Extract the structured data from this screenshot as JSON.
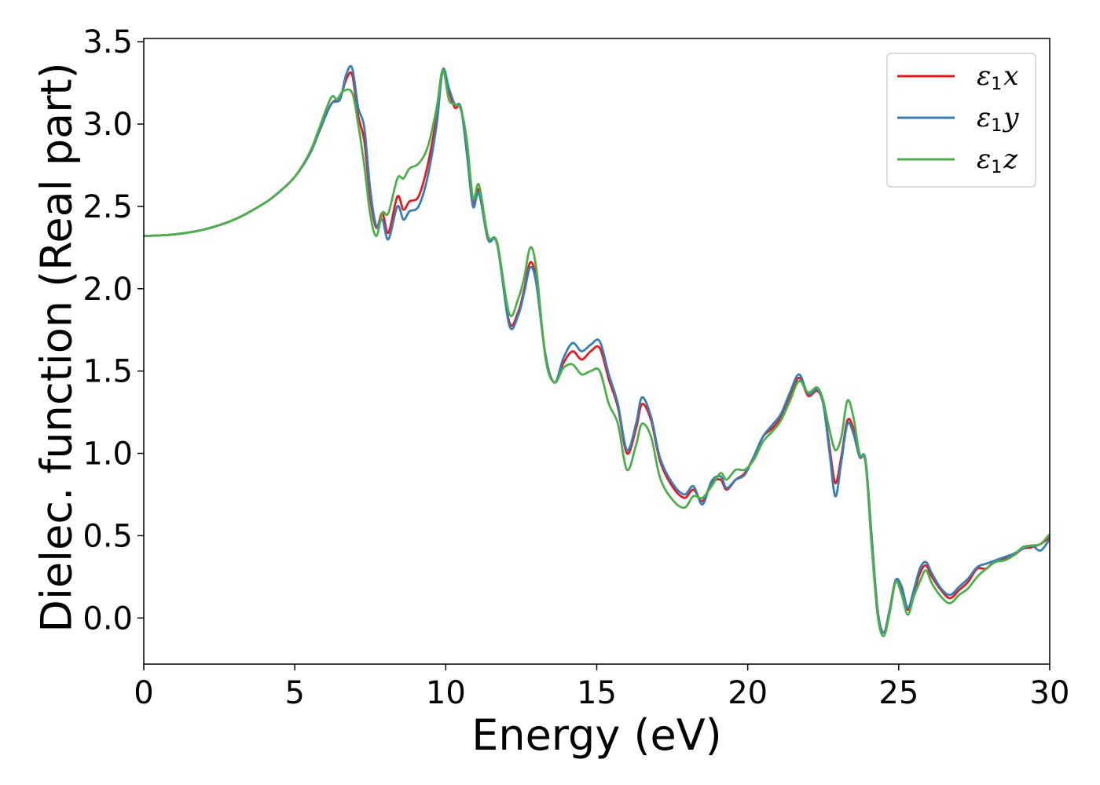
{
  "chart_data": {
    "type": "line",
    "title": "",
    "xlabel": "Energy (eV)",
    "ylabel": "Dielec. function (Real part)",
    "xlim": [
      0,
      30
    ],
    "ylim": [
      -0.28,
      3.52
    ],
    "xticks": [
      0,
      5,
      10,
      15,
      20,
      25,
      30
    ],
    "yticks": [
      0.0,
      0.5,
      1.0,
      1.5,
      2.0,
      2.5,
      3.0,
      3.5
    ],
    "xtick_labels": [
      "0",
      "5",
      "10",
      "15",
      "20",
      "25",
      "30"
    ],
    "ytick_labels": [
      "0.0",
      "0.5",
      "1.0",
      "1.5",
      "2.0",
      "2.5",
      "3.0",
      "3.5"
    ],
    "grid": false,
    "legend_position": "top-right",
    "series": [
      {
        "name": "ε1x",
        "legend_symbol": "ε",
        "legend_sub": "1",
        "legend_axis": "x",
        "color": "#e41a1c",
        "points": [
          [
            0,
            2.32
          ],
          [
            1,
            2.33
          ],
          [
            2,
            2.36
          ],
          [
            3,
            2.42
          ],
          [
            4,
            2.52
          ],
          [
            4.5,
            2.59
          ],
          [
            5,
            2.68
          ],
          [
            5.5,
            2.82
          ],
          [
            5.8,
            2.95
          ],
          [
            6.2,
            3.12
          ],
          [
            6.5,
            3.16
          ],
          [
            6.7,
            3.27
          ],
          [
            6.9,
            3.3
          ],
          [
            7.1,
            3.05
          ],
          [
            7.3,
            2.9
          ],
          [
            7.5,
            2.55
          ],
          [
            7.7,
            2.37
          ],
          [
            7.9,
            2.46
          ],
          [
            8.1,
            2.34
          ],
          [
            8.4,
            2.56
          ],
          [
            8.6,
            2.48
          ],
          [
            8.8,
            2.53
          ],
          [
            9.1,
            2.56
          ],
          [
            9.4,
            2.75
          ],
          [
            9.7,
            3.05
          ],
          [
            9.9,
            3.32
          ],
          [
            10.1,
            3.2
          ],
          [
            10.3,
            3.1
          ],
          [
            10.5,
            3.1
          ],
          [
            10.7,
            2.85
          ],
          [
            10.9,
            2.52
          ],
          [
            11.1,
            2.6
          ],
          [
            11.4,
            2.3
          ],
          [
            11.7,
            2.28
          ],
          [
            12.1,
            1.8
          ],
          [
            12.4,
            1.86
          ],
          [
            12.6,
            2.0
          ],
          [
            12.8,
            2.16
          ],
          [
            13.0,
            2.05
          ],
          [
            13.3,
            1.6
          ],
          [
            13.6,
            1.43
          ],
          [
            13.9,
            1.55
          ],
          [
            14.2,
            1.62
          ],
          [
            14.5,
            1.57
          ],
          [
            14.8,
            1.62
          ],
          [
            15.1,
            1.64
          ],
          [
            15.4,
            1.45
          ],
          [
            15.7,
            1.28
          ],
          [
            16.0,
            1.0
          ],
          [
            16.3,
            1.15
          ],
          [
            16.5,
            1.3
          ],
          [
            16.8,
            1.2
          ],
          [
            17.1,
            0.95
          ],
          [
            17.5,
            0.8
          ],
          [
            17.9,
            0.73
          ],
          [
            18.2,
            0.78
          ],
          [
            18.5,
            0.71
          ],
          [
            18.8,
            0.82
          ],
          [
            19.1,
            0.84
          ],
          [
            19.3,
            0.78
          ],
          [
            19.6,
            0.84
          ],
          [
            19.9,
            0.88
          ],
          [
            20.2,
            0.98
          ],
          [
            20.5,
            1.1
          ],
          [
            20.8,
            1.15
          ],
          [
            21.1,
            1.22
          ],
          [
            21.4,
            1.35
          ],
          [
            21.7,
            1.46
          ],
          [
            22.0,
            1.35
          ],
          [
            22.3,
            1.38
          ],
          [
            22.5,
            1.3
          ],
          [
            22.7,
            1.05
          ],
          [
            22.9,
            0.82
          ],
          [
            23.1,
            0.98
          ],
          [
            23.3,
            1.2
          ],
          [
            23.5,
            1.15
          ],
          [
            23.7,
            0.98
          ],
          [
            23.9,
            0.95
          ],
          [
            24.1,
            0.5
          ],
          [
            24.3,
            0.05
          ],
          [
            24.5,
            -0.09
          ],
          [
            24.7,
            0.05
          ],
          [
            24.9,
            0.23
          ],
          [
            25.1,
            0.18
          ],
          [
            25.3,
            0.05
          ],
          [
            25.5,
            0.15
          ],
          [
            25.7,
            0.27
          ],
          [
            25.9,
            0.32
          ],
          [
            26.1,
            0.25
          ],
          [
            26.4,
            0.17
          ],
          [
            26.7,
            0.12
          ],
          [
            27.0,
            0.17
          ],
          [
            27.3,
            0.22
          ],
          [
            27.6,
            0.3
          ],
          [
            27.9,
            0.3
          ],
          [
            28.2,
            0.35
          ],
          [
            28.5,
            0.36
          ],
          [
            28.8,
            0.38
          ],
          [
            29.1,
            0.42
          ],
          [
            29.4,
            0.43
          ],
          [
            29.7,
            0.45
          ],
          [
            30.0,
            0.49
          ]
        ]
      },
      {
        "name": "ε1y",
        "legend_symbol": "ε",
        "legend_sub": "1",
        "legend_axis": "y",
        "color": "#377eb8",
        "points": [
          [
            0,
            2.32
          ],
          [
            1,
            2.33
          ],
          [
            2,
            2.36
          ],
          [
            3,
            2.42
          ],
          [
            4,
            2.52
          ],
          [
            4.5,
            2.59
          ],
          [
            5,
            2.68
          ],
          [
            5.5,
            2.82
          ],
          [
            5.8,
            2.95
          ],
          [
            6.2,
            3.12
          ],
          [
            6.5,
            3.15
          ],
          [
            6.7,
            3.3
          ],
          [
            6.9,
            3.34
          ],
          [
            7.1,
            3.1
          ],
          [
            7.3,
            2.98
          ],
          [
            7.5,
            2.6
          ],
          [
            7.7,
            2.38
          ],
          [
            7.9,
            2.42
          ],
          [
            8.1,
            2.3
          ],
          [
            8.4,
            2.5
          ],
          [
            8.6,
            2.42
          ],
          [
            8.8,
            2.47
          ],
          [
            9.1,
            2.5
          ],
          [
            9.4,
            2.68
          ],
          [
            9.7,
            3.0
          ],
          [
            9.9,
            3.33
          ],
          [
            10.1,
            3.22
          ],
          [
            10.3,
            3.12
          ],
          [
            10.5,
            3.1
          ],
          [
            10.7,
            2.82
          ],
          [
            10.9,
            2.5
          ],
          [
            11.1,
            2.58
          ],
          [
            11.4,
            2.3
          ],
          [
            11.7,
            2.27
          ],
          [
            12.1,
            1.78
          ],
          [
            12.4,
            1.84
          ],
          [
            12.6,
            1.98
          ],
          [
            12.8,
            2.13
          ],
          [
            13.0,
            2.03
          ],
          [
            13.3,
            1.6
          ],
          [
            13.6,
            1.43
          ],
          [
            13.9,
            1.58
          ],
          [
            14.2,
            1.67
          ],
          [
            14.5,
            1.62
          ],
          [
            14.8,
            1.66
          ],
          [
            15.1,
            1.68
          ],
          [
            15.4,
            1.48
          ],
          [
            15.7,
            1.3
          ],
          [
            16.0,
            1.02
          ],
          [
            16.3,
            1.18
          ],
          [
            16.5,
            1.34
          ],
          [
            16.8,
            1.22
          ],
          [
            17.1,
            0.97
          ],
          [
            17.5,
            0.82
          ],
          [
            17.9,
            0.75
          ],
          [
            18.2,
            0.8
          ],
          [
            18.5,
            0.69
          ],
          [
            18.8,
            0.83
          ],
          [
            19.1,
            0.86
          ],
          [
            19.3,
            0.79
          ],
          [
            19.6,
            0.84
          ],
          [
            19.9,
            0.87
          ],
          [
            20.2,
            0.98
          ],
          [
            20.5,
            1.1
          ],
          [
            20.8,
            1.17
          ],
          [
            21.1,
            1.24
          ],
          [
            21.4,
            1.37
          ],
          [
            21.7,
            1.48
          ],
          [
            22.0,
            1.36
          ],
          [
            22.3,
            1.39
          ],
          [
            22.5,
            1.3
          ],
          [
            22.7,
            1.02
          ],
          [
            22.9,
            0.74
          ],
          [
            23.1,
            0.95
          ],
          [
            23.3,
            1.18
          ],
          [
            23.5,
            1.12
          ],
          [
            23.7,
            0.98
          ],
          [
            23.9,
            0.96
          ],
          [
            24.1,
            0.5
          ],
          [
            24.3,
            0.05
          ],
          [
            24.5,
            -0.09
          ],
          [
            24.7,
            0.05
          ],
          [
            24.9,
            0.23
          ],
          [
            25.1,
            0.19
          ],
          [
            25.3,
            0.06
          ],
          [
            25.5,
            0.17
          ],
          [
            25.7,
            0.3
          ],
          [
            25.9,
            0.34
          ],
          [
            26.1,
            0.27
          ],
          [
            26.4,
            0.18
          ],
          [
            26.7,
            0.14
          ],
          [
            27.0,
            0.19
          ],
          [
            27.3,
            0.24
          ],
          [
            27.6,
            0.31
          ],
          [
            27.9,
            0.33
          ],
          [
            28.2,
            0.35
          ],
          [
            28.5,
            0.37
          ],
          [
            28.8,
            0.39
          ],
          [
            29.1,
            0.42
          ],
          [
            29.4,
            0.44
          ],
          [
            29.7,
            0.41
          ],
          [
            30.0,
            0.48
          ]
        ]
      },
      {
        "name": "ε1z",
        "legend_symbol": "ε",
        "legend_sub": "1",
        "legend_axis": "z",
        "color": "#4daf4a",
        "points": [
          [
            0,
            2.32
          ],
          [
            1,
            2.33
          ],
          [
            2,
            2.36
          ],
          [
            3,
            2.42
          ],
          [
            4,
            2.52
          ],
          [
            4.5,
            2.59
          ],
          [
            5,
            2.68
          ],
          [
            5.5,
            2.83
          ],
          [
            5.8,
            2.97
          ],
          [
            6.2,
            3.16
          ],
          [
            6.4,
            3.15
          ],
          [
            6.6,
            3.2
          ],
          [
            6.9,
            3.19
          ],
          [
            7.1,
            3.0
          ],
          [
            7.3,
            2.75
          ],
          [
            7.5,
            2.45
          ],
          [
            7.7,
            2.32
          ],
          [
            7.9,
            2.46
          ],
          [
            8.1,
            2.46
          ],
          [
            8.4,
            2.67
          ],
          [
            8.6,
            2.67
          ],
          [
            8.8,
            2.73
          ],
          [
            9.1,
            2.76
          ],
          [
            9.4,
            2.86
          ],
          [
            9.7,
            3.1
          ],
          [
            9.9,
            3.33
          ],
          [
            10.1,
            3.15
          ],
          [
            10.3,
            3.12
          ],
          [
            10.5,
            3.09
          ],
          [
            10.7,
            2.9
          ],
          [
            10.9,
            2.55
          ],
          [
            11.1,
            2.63
          ],
          [
            11.4,
            2.32
          ],
          [
            11.7,
            2.28
          ],
          [
            12.1,
            1.85
          ],
          [
            12.4,
            1.94
          ],
          [
            12.6,
            2.07
          ],
          [
            12.8,
            2.25
          ],
          [
            13.0,
            2.12
          ],
          [
            13.3,
            1.58
          ],
          [
            13.6,
            1.43
          ],
          [
            13.9,
            1.52
          ],
          [
            14.2,
            1.54
          ],
          [
            14.5,
            1.48
          ],
          [
            14.8,
            1.5
          ],
          [
            15.1,
            1.5
          ],
          [
            15.4,
            1.3
          ],
          [
            15.7,
            1.18
          ],
          [
            16.0,
            0.9
          ],
          [
            16.3,
            1.05
          ],
          [
            16.5,
            1.18
          ],
          [
            16.8,
            1.1
          ],
          [
            17.1,
            0.85
          ],
          [
            17.5,
            0.72
          ],
          [
            17.9,
            0.67
          ],
          [
            18.2,
            0.74
          ],
          [
            18.5,
            0.73
          ],
          [
            18.8,
            0.8
          ],
          [
            19.1,
            0.88
          ],
          [
            19.3,
            0.84
          ],
          [
            19.6,
            0.9
          ],
          [
            19.9,
            0.9
          ],
          [
            20.2,
            0.96
          ],
          [
            20.5,
            1.07
          ],
          [
            20.8,
            1.13
          ],
          [
            21.1,
            1.2
          ],
          [
            21.4,
            1.32
          ],
          [
            21.7,
            1.44
          ],
          [
            22.0,
            1.37
          ],
          [
            22.3,
            1.4
          ],
          [
            22.5,
            1.32
          ],
          [
            22.7,
            1.15
          ],
          [
            22.9,
            1.02
          ],
          [
            23.1,
            1.1
          ],
          [
            23.3,
            1.32
          ],
          [
            23.5,
            1.22
          ],
          [
            23.7,
            1.0
          ],
          [
            23.9,
            0.94
          ],
          [
            24.1,
            0.45
          ],
          [
            24.3,
            0.02
          ],
          [
            24.5,
            -0.11
          ],
          [
            24.7,
            0.03
          ],
          [
            24.9,
            0.22
          ],
          [
            25.1,
            0.14
          ],
          [
            25.3,
            0.02
          ],
          [
            25.5,
            0.13
          ],
          [
            25.7,
            0.22
          ],
          [
            25.9,
            0.29
          ],
          [
            26.1,
            0.21
          ],
          [
            26.4,
            0.13
          ],
          [
            26.7,
            0.09
          ],
          [
            27.0,
            0.14
          ],
          [
            27.3,
            0.18
          ],
          [
            27.6,
            0.25
          ],
          [
            27.9,
            0.3
          ],
          [
            28.2,
            0.34
          ],
          [
            28.5,
            0.35
          ],
          [
            28.8,
            0.38
          ],
          [
            29.1,
            0.43
          ],
          [
            29.4,
            0.44
          ],
          [
            29.7,
            0.45
          ],
          [
            30.0,
            0.51
          ]
        ]
      }
    ]
  }
}
